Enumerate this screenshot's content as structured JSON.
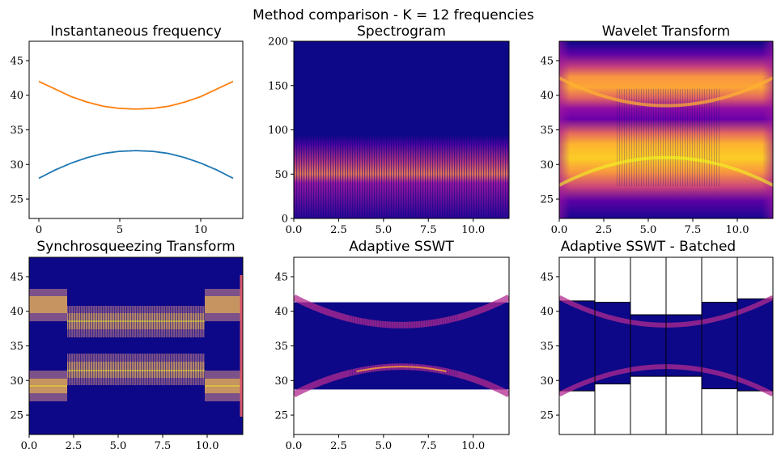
{
  "suptitle": "Method comparison - K = 12 frequencies",
  "chart_data": [
    {
      "type": "line",
      "title": "Instantaneous frequency",
      "xlim": [
        -0.6,
        12.6
      ],
      "ylim": [
        22.2,
        47.8
      ],
      "xticks": [
        0,
        5,
        10
      ],
      "yticks": [
        25,
        30,
        35,
        40,
        45
      ],
      "series": [
        {
          "color": "#ff7f0e",
          "x": [
            0,
            1,
            2,
            3,
            4,
            5,
            6,
            7,
            8,
            9,
            10,
            11,
            12
          ],
          "y": [
            42.0,
            40.9,
            39.8,
            39.0,
            38.4,
            38.1,
            38.0,
            38.1,
            38.4,
            39.0,
            39.8,
            40.9,
            42.0
          ]
        },
        {
          "color": "#1f77b4",
          "x": [
            0,
            1,
            2,
            3,
            4,
            5,
            6,
            7,
            8,
            9,
            10,
            11,
            12
          ],
          "y": [
            28.0,
            29.2,
            30.2,
            31.0,
            31.6,
            31.9,
            32.0,
            31.9,
            31.6,
            31.0,
            30.2,
            29.2,
            28.0
          ]
        }
      ]
    },
    {
      "type": "heatmap",
      "title": "Spectrogram",
      "colormap": "plasma",
      "xlim": [
        0,
        12
      ],
      "ylim": [
        0,
        200
      ],
      "xticks": [
        "0.0",
        "2.5",
        "5.0",
        "7.5",
        "10.0"
      ],
      "yticks": [
        "0",
        "50",
        "100",
        "150",
        "200"
      ],
      "energy_band": [
        15,
        90
      ],
      "energy_peak": 50
    },
    {
      "type": "heatmap",
      "title": "Wavelet Transform",
      "colormap": "plasma",
      "xlim": [
        0,
        12
      ],
      "ylim": [
        22.2,
        47.8
      ],
      "xticks": [
        "0.0",
        "2.5",
        "5.0",
        "7.5",
        "10.0"
      ],
      "yticks": [
        "25",
        "30",
        "35",
        "40",
        "45"
      ],
      "ridges": [
        "upper",
        "lower"
      ]
    },
    {
      "type": "heatmap",
      "title": "Synchrosqueezing Transform",
      "colormap": "plasma",
      "xlim": [
        0,
        12
      ],
      "ylim": [
        22.2,
        47.8
      ],
      "xticks": [
        "0.0",
        "2.5",
        "5.0",
        "7.5",
        "10.0"
      ],
      "yticks": [
        "25",
        "30",
        "35",
        "40",
        "45"
      ],
      "ridges": [
        "upper",
        "lower"
      ]
    },
    {
      "type": "heatmap",
      "title": "Adaptive SSWT",
      "colormap": "plasma",
      "xlim": [
        0,
        12
      ],
      "ylim": [
        22.2,
        47.8
      ],
      "xticks": [
        "0.0",
        "2.5",
        "5.0",
        "7.5",
        "10.0"
      ],
      "yticks": [
        "25",
        "30",
        "35",
        "40",
        "45"
      ],
      "band": [
        28.7,
        41.3
      ],
      "ridges": [
        "upper",
        "lower"
      ]
    },
    {
      "type": "heatmap",
      "title": "Adaptive SSWT - Batched",
      "colormap": "plasma",
      "ylim": [
        22.2,
        47.8
      ],
      "yticks": [
        "25",
        "30",
        "35",
        "40",
        "45"
      ],
      "batches": [
        {
          "ymin": 28.5,
          "ymax": 41.5
        },
        {
          "ymin": 29.5,
          "ymax": 41.3
        },
        {
          "ymin": 30.6,
          "ymax": 39.5
        },
        {
          "ymin": 30.6,
          "ymax": 39.5
        },
        {
          "ymin": 28.8,
          "ymax": 41.3
        },
        {
          "ymin": 28.5,
          "ymax": 41.8
        }
      ]
    }
  ]
}
